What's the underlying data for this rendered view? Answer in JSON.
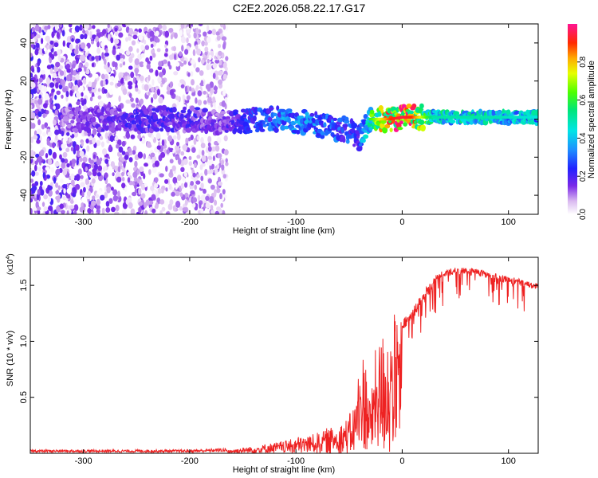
{
  "title": "C2E2.2026.058.22.17.G17",
  "colors": {
    "snr_line": "#ee2222",
    "axis": "#000000",
    "background": "#ffffff"
  },
  "chart_data": [
    {
      "type": "heatmap",
      "name": "spectrogram",
      "xlabel": "Height of straight line (km)",
      "ylabel": "Frequency (Hz)",
      "xlim": [
        -350,
        128
      ],
      "ylim": [
        -50,
        50
      ],
      "xticks": [
        -300,
        -200,
        -100,
        0,
        100
      ],
      "yticks": [
        -40,
        -20,
        0,
        20,
        40
      ],
      "colorbar": {
        "label": "Normalized spectral amplitude",
        "range": [
          0,
          1
        ],
        "ticks": [
          0.0,
          0.2,
          0.4,
          0.6,
          0.8
        ],
        "tick_labels": [
          "0.0",
          "0.2",
          "0.4",
          "0.6",
          "0.8"
        ]
      },
      "features": [
        {
          "region": "noise",
          "x_range": [
            -350,
            -165
          ],
          "freq_range": [
            -50,
            50
          ],
          "amplitude": 0.1
        },
        {
          "region": "track",
          "points": [
            [
              -300,
              0,
              0.15
            ],
            [
              -260,
              0,
              0.2
            ],
            [
              -230,
              0,
              0.2
            ],
            [
              -200,
              0,
              0.2
            ],
            [
              -170,
              -2,
              0.15
            ],
            [
              -150,
              -1,
              0.25
            ],
            [
              -130,
              0,
              0.3
            ],
            [
              -110,
              0,
              0.35
            ],
            [
              -90,
              -2,
              0.35
            ],
            [
              -70,
              -4,
              0.3
            ],
            [
              -50,
              -6,
              0.3
            ],
            [
              -40,
              -10,
              0.25
            ],
            [
              -30,
              0,
              0.6
            ],
            [
              -20,
              0,
              0.75
            ],
            [
              -10,
              0,
              0.9
            ],
            [
              0,
              1,
              0.95
            ],
            [
              10,
              1,
              0.9
            ],
            [
              30,
              1,
              0.5
            ],
            [
              80,
              1,
              0.5
            ],
            [
              125,
              1,
              0.45
            ]
          ]
        }
      ]
    },
    {
      "type": "line",
      "name": "snr",
      "xlabel": "Height of straight line (km)",
      "ylabel": "SNR (10 * v/v)",
      "y_multiplier_label": "(x10",
      "y_multiplier_exp": "4",
      "y_multiplier_close": ")",
      "xlim": [
        -350,
        128
      ],
      "ylim": [
        0,
        1.75
      ],
      "xticks": [
        -300,
        -200,
        -100,
        0,
        100
      ],
      "yticks": [
        0.5,
        1.0,
        1.5
      ],
      "ytick_labels": [
        "0.5",
        "1.0",
        "1.5"
      ],
      "series": [
        {
          "name": "SNR",
          "x": [
            -350,
            -300,
            -250,
            -200,
            -165,
            -140,
            -120,
            -100,
            -80,
            -60,
            -50,
            -45,
            -40,
            -35,
            -30,
            -25,
            -20,
            -10,
            0,
            10,
            20,
            30,
            40,
            50,
            60,
            70,
            80,
            90,
            100,
            110,
            120,
            128
          ],
          "y": [
            0.02,
            0.02,
            0.02,
            0.02,
            0.03,
            0.06,
            0.09,
            0.13,
            0.17,
            0.25,
            0.32,
            0.4,
            0.75,
            0.9,
            0.45,
            0.9,
            1.0,
            1.1,
            1.2,
            1.3,
            1.45,
            1.58,
            1.64,
            1.66,
            1.66,
            1.65,
            1.62,
            1.6,
            1.58,
            1.56,
            1.53,
            1.52
          ]
        }
      ]
    }
  ]
}
